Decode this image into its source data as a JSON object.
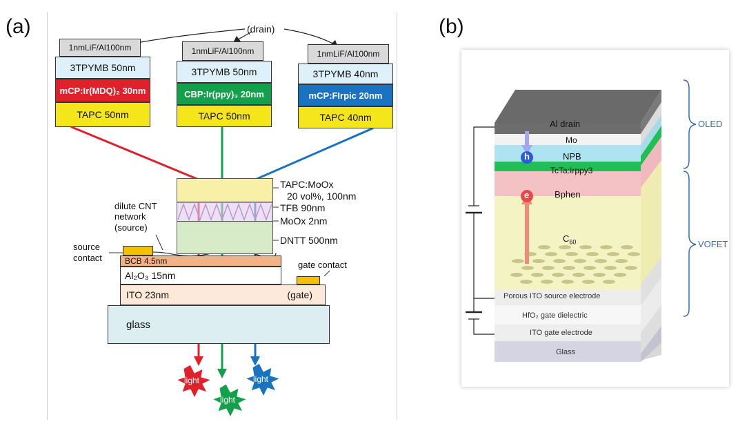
{
  "panels": {
    "a": "(a)",
    "b": "(b)"
  },
  "drain_label": "(drain)",
  "stacks": [
    {
      "cathode": "1nmLiF/Al100nm",
      "etl": "3TPYMB 50nm",
      "eml": "mCP:Ir(MDQ)₂ 30nm",
      "htl": "TAPC 50nm",
      "eml_color": "#e0202a"
    },
    {
      "cathode": "1nmLiF/Al100nm",
      "etl": "3TPYMB 50nm",
      "eml": "CBP:Ir(ppy)₃ 20nm",
      "htl": "TAPC 50nm",
      "eml_color": "#12a04a"
    },
    {
      "cathode": "1nmLiF/Al100nm",
      "etl": "3TPYMB 40nm",
      "eml": "mCP:FIrpic 20nm",
      "htl": "TAPC 40nm",
      "eml_color": "#1a73c0"
    }
  ],
  "device_a": {
    "tapc_moox_1": "TAPC:MoOx",
    "tapc_moox_2": "20 vol%, 100nm",
    "tfb": "TFB 90nm",
    "moox": "MoOx 2nm",
    "dntt": "DNTT 500nm",
    "cnt_1": "dilute CNT",
    "cnt_2": "network",
    "cnt_3": "(source)",
    "source_1": "source",
    "source_2": "contact",
    "bcb": "BCB 4.5nm",
    "al2o3": "Al₂O₃ 15nm",
    "gate_contact": "gate contact",
    "ito": "ITO 23nm",
    "gate": "(gate)",
    "glass": "glass",
    "light": "light"
  },
  "device_b": {
    "al_drain": "Al drain",
    "mo": "Mo",
    "npb": "NPB",
    "tcta": "TcTa:Irppy3",
    "bphen": "Bphen",
    "c60": "C",
    "c60_sub": "60",
    "ito_source": "Porous ITO source electrode",
    "hfo2": "HfO₂ gate dielectric",
    "ito_gate": "ITO gate electrode",
    "glass": "Glass",
    "hole": "h",
    "electron": "e",
    "oled": "OLED",
    "vofet": "VOFET"
  },
  "colors": {
    "red": "#e0202a",
    "green": "#12a04a",
    "blue": "#1a73c0",
    "yellow": "#f5e51b",
    "etl": "#def0fa",
    "cathode": "#d9d9d9"
  }
}
